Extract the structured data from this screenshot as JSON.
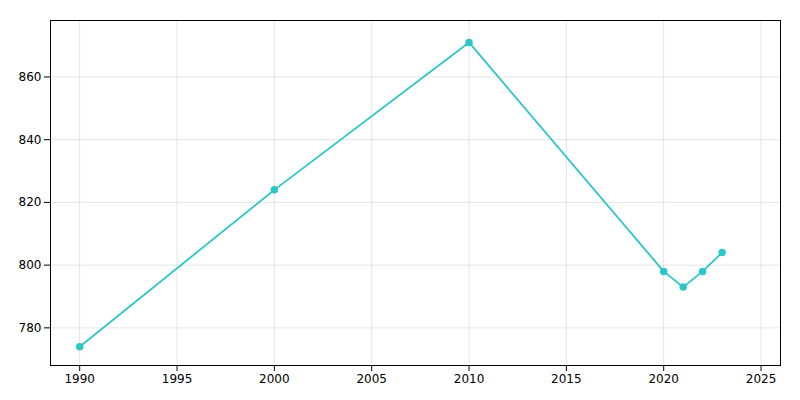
{
  "chart_data": {
    "type": "line",
    "x": [
      1990,
      2000,
      2010,
      2020,
      2021,
      2022,
      2023
    ],
    "values": [
      774,
      824,
      871,
      798,
      793,
      798,
      804
    ],
    "color": "#2DC6C8",
    "marker": "circle",
    "xlim": [
      1988.5,
      2026
    ],
    "ylim": [
      768,
      878
    ],
    "xticks": [
      1990,
      1995,
      2000,
      2005,
      2010,
      2015,
      2020,
      2025
    ],
    "yticks": [
      780,
      800,
      820,
      840,
      860
    ],
    "grid": true
  }
}
